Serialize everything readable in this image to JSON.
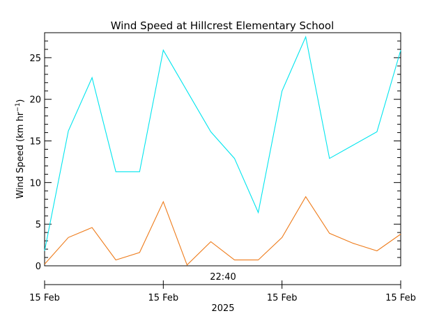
{
  "chart_data": {
    "type": "line",
    "title": "Wind Speed at Hillcrest Elementary School",
    "ylabel": {
      "prefix": "Wind Speed (km hr",
      "superscript": "−1",
      "suffix": ")"
    },
    "ylim": [
      0,
      28
    ],
    "yticks": [
      "0",
      "5",
      "10",
      "15",
      "20",
      "25"
    ],
    "xlim": [
      0,
      15
    ],
    "inner_x_label": "22:40",
    "bottom_axis": {
      "labels": [
        "15 Feb",
        "15 Feb",
        "15 Feb",
        "15 Feb"
      ],
      "label_positions": [
        0,
        5,
        10,
        15
      ],
      "year_label": "2025"
    },
    "grid": false,
    "legend": "none",
    "x": [
      0,
      1,
      2,
      3,
      4,
      5,
      6,
      7,
      8,
      9,
      10,
      11,
      12,
      13,
      14,
      15
    ],
    "series": [
      {
        "color": "#00e5ee",
        "values": [
          1.8,
          16.2,
          22.6,
          11.3,
          11.3,
          25.9,
          21.0,
          16.1,
          12.9,
          6.4,
          21.0,
          27.5,
          12.9,
          14.5,
          16.1,
          25.9
        ]
      },
      {
        "color": "#ee7b1a",
        "values": [
          0.2,
          3.4,
          4.6,
          0.7,
          1.6,
          7.7,
          0.1,
          2.9,
          0.7,
          0.7,
          3.4,
          8.3,
          3.9,
          2.7,
          1.8,
          3.8
        ]
      }
    ]
  }
}
